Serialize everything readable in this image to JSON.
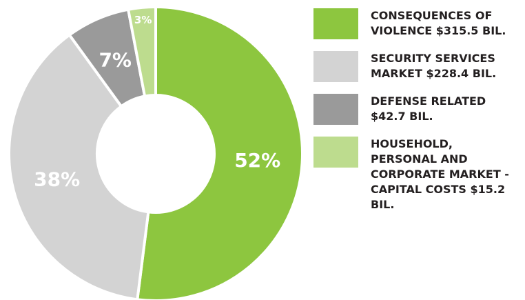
{
  "chart_data": {
    "type": "donut",
    "series": [
      {
        "name": "CONSEQUENCES OF VIOLENCE $315.5 BIL.",
        "color": "#8dc63f"
      },
      {
        "name": "SECURITY SERVICES MARKET $228.4 BIL.",
        "color": "#d3d3d3"
      },
      {
        "name": "DEFENSE RELATED $42.7 BIL.",
        "color": "#9a9a9a"
      },
      {
        "name": "HOUSEHOLD, PERSONAL AND CORPORATE MARKET - CAPITAL COSTS $15.2 BIL.",
        "color": "#bddc8e"
      }
    ],
    "values": [
      52,
      38,
      7,
      3
    ],
    "value_labels": [
      "52%",
      "38%",
      "7%",
      "3%"
    ]
  }
}
